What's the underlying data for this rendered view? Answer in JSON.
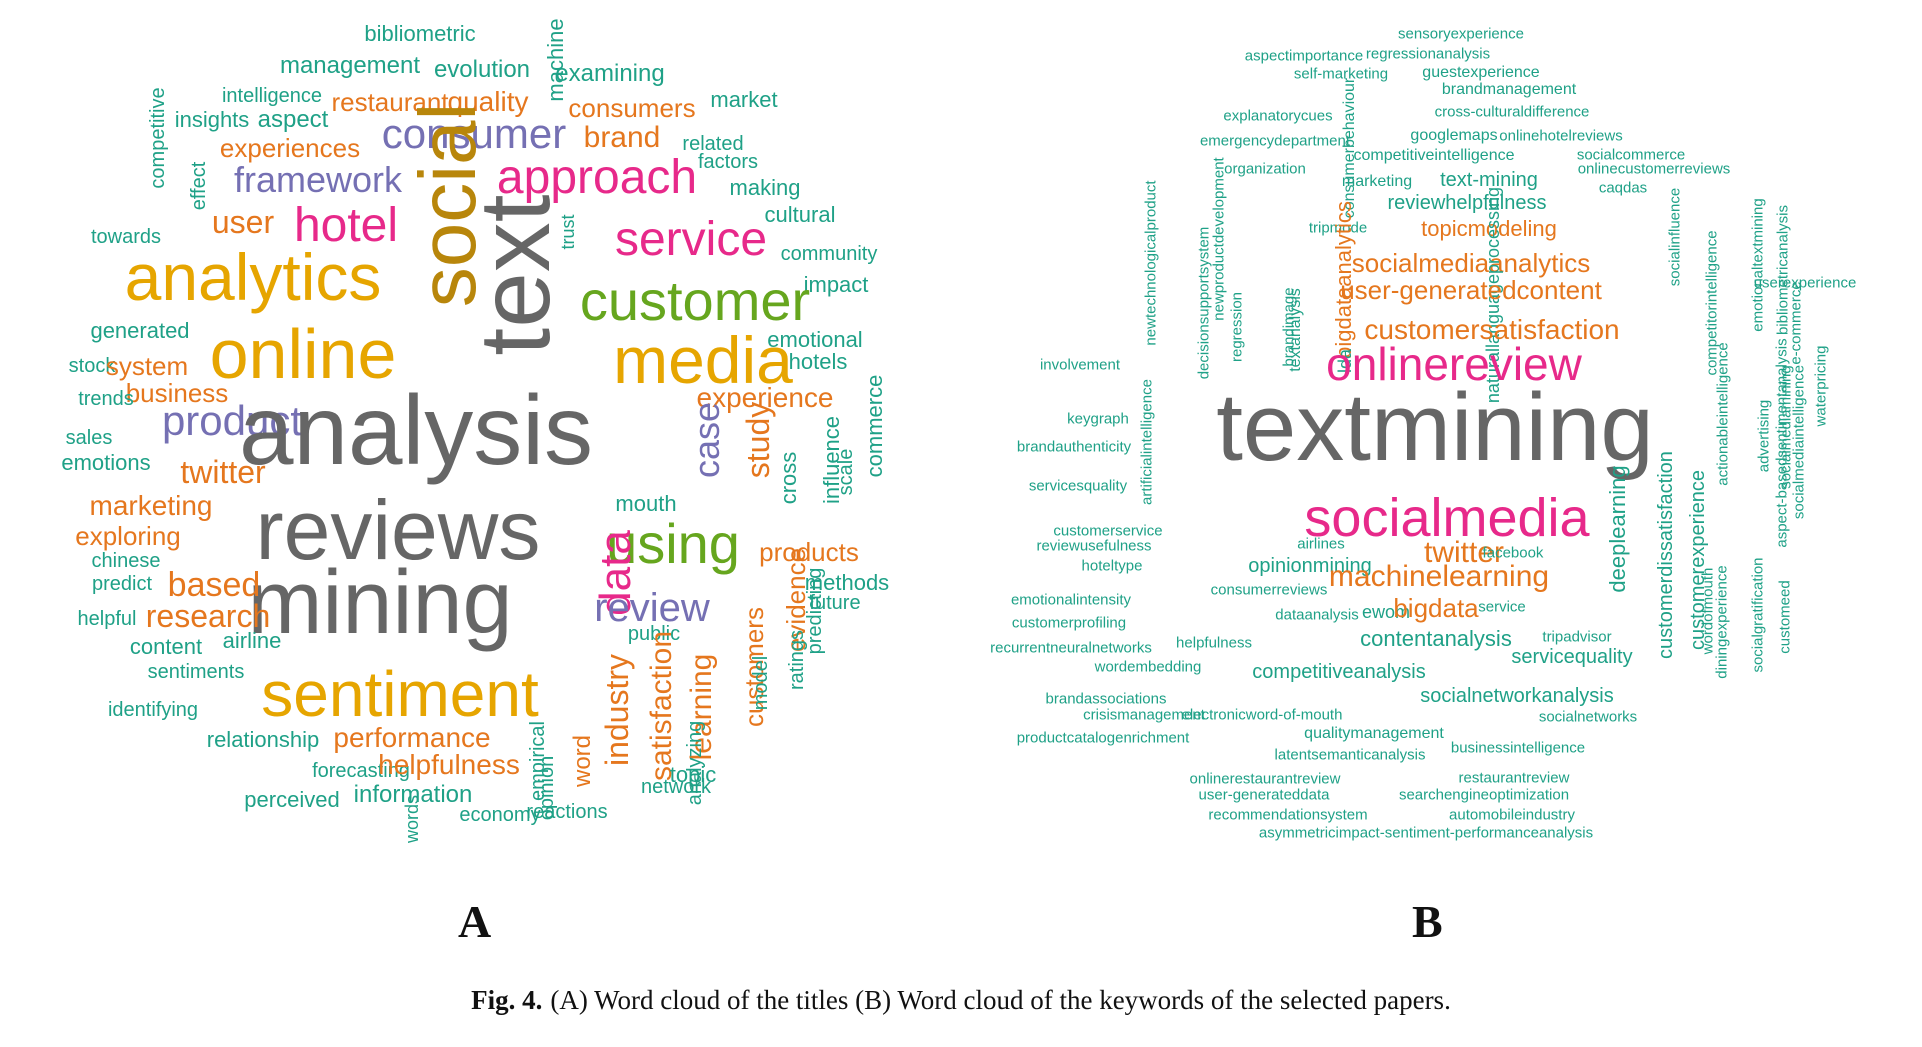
{
  "palette": {
    "teal": "#1fa187",
    "orange": "#e5771e",
    "gold": "#e6a500",
    "brown": "#b8860b",
    "gray": "#666666",
    "pink": "#e7298a",
    "purple": "#7570b3",
    "green": "#66a61e"
  },
  "cloud_a": {
    "label": "A",
    "words": [
      {
        "text": "bibliometric",
        "c": "teal",
        "s": 22
      },
      {
        "text": "management",
        "c": "teal",
        "s": 24
      },
      {
        "text": "evolution",
        "c": "teal",
        "s": 24
      },
      {
        "text": "machine",
        "c": "teal",
        "s": 22,
        "v": true
      },
      {
        "text": "examining",
        "c": "teal",
        "s": 24
      },
      {
        "text": "intelligence",
        "c": "teal",
        "s": 20
      },
      {
        "text": "restaurant",
        "c": "orange",
        "s": 26
      },
      {
        "text": "quality",
        "c": "orange",
        "s": 28
      },
      {
        "text": "consumers",
        "c": "orange",
        "s": 26
      },
      {
        "text": "market",
        "c": "teal",
        "s": 22
      },
      {
        "text": "insights",
        "c": "teal",
        "s": 22
      },
      {
        "text": "aspect",
        "c": "teal",
        "s": 24
      },
      {
        "text": "consumer",
        "c": "purple",
        "s": 42
      },
      {
        "text": "brand",
        "c": "orange",
        "s": 30
      },
      {
        "text": "related",
        "c": "teal",
        "s": 20
      },
      {
        "text": "competitive",
        "c": "teal",
        "s": 20,
        "v": true
      },
      {
        "text": "experiences",
        "c": "orange",
        "s": 26
      },
      {
        "text": "factors",
        "c": "teal",
        "s": 20
      },
      {
        "text": "framework",
        "c": "purple",
        "s": 36
      },
      {
        "text": "approach",
        "c": "pink",
        "s": 48
      },
      {
        "text": "making",
        "c": "teal",
        "s": 22
      },
      {
        "text": "effect",
        "c": "teal",
        "s": 20,
        "v": true
      },
      {
        "text": "social",
        "c": "brown",
        "s": 80,
        "v": true
      },
      {
        "text": "cultural",
        "c": "teal",
        "s": 22
      },
      {
        "text": "user",
        "c": "orange",
        "s": 32
      },
      {
        "text": "hotel",
        "c": "pink",
        "s": 48
      },
      {
        "text": "trust",
        "c": "teal",
        "s": 18,
        "v": true
      },
      {
        "text": "service",
        "c": "pink",
        "s": 48
      },
      {
        "text": "towards",
        "c": "teal",
        "s": 20
      },
      {
        "text": "community",
        "c": "teal",
        "s": 20
      },
      {
        "text": "text",
        "c": "gray",
        "s": 100,
        "v": true
      },
      {
        "text": "analytics",
        "c": "gold",
        "s": 66
      },
      {
        "text": "impact",
        "c": "teal",
        "s": 22
      },
      {
        "text": "customer",
        "c": "green",
        "s": 56
      },
      {
        "text": "generated",
        "c": "teal",
        "s": 22
      },
      {
        "text": "emotional",
        "c": "teal",
        "s": 22
      },
      {
        "text": "online",
        "c": "gold",
        "s": 70
      },
      {
        "text": "media",
        "c": "gold",
        "s": 66
      },
      {
        "text": "stock",
        "c": "teal",
        "s": 20
      },
      {
        "text": "system",
        "c": "orange",
        "s": 26
      },
      {
        "text": "hotels",
        "c": "teal",
        "s": 22
      },
      {
        "text": "business",
        "c": "orange",
        "s": 26
      },
      {
        "text": "trends",
        "c": "teal",
        "s": 20
      },
      {
        "text": "experience",
        "c": "orange",
        "s": 28
      },
      {
        "text": "product",
        "c": "purple",
        "s": 42
      },
      {
        "text": "analysis",
        "c": "gray",
        "s": 98
      },
      {
        "text": "case",
        "c": "purple",
        "s": 36,
        "v": true
      },
      {
        "text": "study",
        "c": "orange",
        "s": 32,
        "v": true
      },
      {
        "text": "commerce",
        "c": "teal",
        "s": 22,
        "v": true
      },
      {
        "text": "sales",
        "c": "teal",
        "s": 20
      },
      {
        "text": "influence",
        "c": "teal",
        "s": 22,
        "v": true
      },
      {
        "text": "scale",
        "c": "teal",
        "s": 20,
        "v": true
      },
      {
        "text": "emotions",
        "c": "teal",
        "s": 22
      },
      {
        "text": "twitter",
        "c": "orange",
        "s": 32
      },
      {
        "text": "cross",
        "c": "teal",
        "s": 22,
        "v": true
      },
      {
        "text": "marketing",
        "c": "orange",
        "s": 28
      },
      {
        "text": "mouth",
        "c": "teal",
        "s": 22
      },
      {
        "text": "reviews",
        "c": "gray",
        "s": 84
      },
      {
        "text": "exploring",
        "c": "orange",
        "s": 26
      },
      {
        "text": "using",
        "c": "green",
        "s": 56
      },
      {
        "text": "products",
        "c": "orange",
        "s": 26
      },
      {
        "text": "chinese",
        "c": "teal",
        "s": 20
      },
      {
        "text": "methods",
        "c": "teal",
        "s": 22
      },
      {
        "text": "predict",
        "c": "teal",
        "s": 20
      },
      {
        "text": "mining",
        "c": "gray",
        "s": 90
      },
      {
        "text": "based",
        "c": "orange",
        "s": 34
      },
      {
        "text": "data",
        "c": "pink",
        "s": 44,
        "v": true
      },
      {
        "text": "future",
        "c": "teal",
        "s": 20
      },
      {
        "text": "review",
        "c": "purple",
        "s": 40
      },
      {
        "text": "helpful",
        "c": "teal",
        "s": 20
      },
      {
        "text": "research",
        "c": "orange",
        "s": 32
      },
      {
        "text": "evidence",
        "c": "orange",
        "s": 26,
        "v": true
      },
      {
        "text": "predicting",
        "c": "teal",
        "s": 20,
        "v": true
      },
      {
        "text": "content",
        "c": "teal",
        "s": 22
      },
      {
        "text": "airline",
        "c": "teal",
        "s": 22
      },
      {
        "text": "public",
        "c": "teal",
        "s": 20
      },
      {
        "text": "sentiments",
        "c": "teal",
        "s": 20
      },
      {
        "text": "ratings",
        "c": "teal",
        "s": 20,
        "v": true
      },
      {
        "text": "customers",
        "c": "orange",
        "s": 26,
        "v": true
      },
      {
        "text": "sentiment",
        "c": "gold",
        "s": 64
      },
      {
        "text": "industry",
        "c": "orange",
        "s": 32,
        "v": true
      },
      {
        "text": "model",
        "c": "teal",
        "s": 20,
        "v": true
      },
      {
        "text": "learning",
        "c": "orange",
        "s": 30,
        "v": true
      },
      {
        "text": "satisfaction",
        "c": "orange",
        "s": 30,
        "v": true
      },
      {
        "text": "identifying",
        "c": "teal",
        "s": 20
      },
      {
        "text": "analyzing",
        "c": "teal",
        "s": 20,
        "v": true
      },
      {
        "text": "relationship",
        "c": "teal",
        "s": 22
      },
      {
        "text": "performance",
        "c": "orange",
        "s": 28
      },
      {
        "text": "forecasting",
        "c": "teal",
        "s": 20
      },
      {
        "text": "helpfulness",
        "c": "orange",
        "s": 28
      },
      {
        "text": "topic",
        "c": "teal",
        "s": 22
      },
      {
        "text": "empirical",
        "c": "teal",
        "s": 20,
        "v": true
      },
      {
        "text": "word",
        "c": "orange",
        "s": 24,
        "v": true
      },
      {
        "text": "perceived",
        "c": "teal",
        "s": 22
      },
      {
        "text": "information",
        "c": "teal",
        "s": 24
      },
      {
        "text": "opinion",
        "c": "teal",
        "s": 20,
        "v": true
      },
      {
        "text": "network",
        "c": "teal",
        "s": 20
      },
      {
        "text": "reactions",
        "c": "teal",
        "s": 20
      },
      {
        "text": "words",
        "c": "teal",
        "s": 18,
        "v": true
      },
      {
        "text": "economy",
        "c": "teal",
        "s": 20
      }
    ]
  },
  "cloud_b": {
    "label": "B",
    "words": [
      {
        "text": "sensoryexperience",
        "c": "teal",
        "s": 15
      },
      {
        "text": "aspectimportance",
        "c": "teal",
        "s": 15
      },
      {
        "text": "regressionanalysis",
        "c": "teal",
        "s": 15
      },
      {
        "text": "self-marketing",
        "c": "teal",
        "s": 15
      },
      {
        "text": "guestexperience",
        "c": "teal",
        "s": 16
      },
      {
        "text": "brandmanagement",
        "c": "teal",
        "s": 16
      },
      {
        "text": "cross-culturaldifference",
        "c": "teal",
        "s": 15
      },
      {
        "text": "explanatorycues",
        "c": "teal",
        "s": 15
      },
      {
        "text": "consumerbehaviour",
        "c": "teal",
        "s": 16,
        "v": true
      },
      {
        "text": "googlemaps",
        "c": "teal",
        "s": 16
      },
      {
        "text": "onlinehotelreviews",
        "c": "teal",
        "s": 15
      },
      {
        "text": "emergencydepartment",
        "c": "teal",
        "s": 15
      },
      {
        "text": "socialcommerce",
        "c": "teal",
        "s": 15
      },
      {
        "text": "competitiveintelligence",
        "c": "teal",
        "s": 16
      },
      {
        "text": "organization",
        "c": "teal",
        "s": 15
      },
      {
        "text": "onlinecustomerreviews",
        "c": "teal",
        "s": 15
      },
      {
        "text": "newtechnologicalproduct",
        "c": "teal",
        "s": 15,
        "v": true
      },
      {
        "text": "marketing",
        "c": "teal",
        "s": 16
      },
      {
        "text": "text-mining",
        "c": "teal",
        "s": 20
      },
      {
        "text": "caqdas",
        "c": "teal",
        "s": 15
      },
      {
        "text": "newproductdevelopment",
        "c": "teal",
        "s": 15,
        "v": true
      },
      {
        "text": "reviewhelpfulness",
        "c": "teal",
        "s": 20
      },
      {
        "text": "tripmode",
        "c": "teal",
        "s": 15
      },
      {
        "text": "topicmodeling",
        "c": "orange",
        "s": 22
      },
      {
        "text": "decisionsupportsystem",
        "c": "teal",
        "s": 15,
        "v": true
      },
      {
        "text": "bigdataanalytics",
        "c": "orange",
        "s": 22,
        "v": true
      },
      {
        "text": "socialmediaanalytics",
        "c": "orange",
        "s": 26
      },
      {
        "text": "socialinfluence",
        "c": "teal",
        "s": 15,
        "v": true
      },
      {
        "text": "competitorintelligence",
        "c": "teal",
        "s": 15,
        "v": true
      },
      {
        "text": "emotionaltextmining",
        "c": "teal",
        "s": 15,
        "v": true
      },
      {
        "text": "bibliometricanalysis",
        "c": "teal",
        "s": 15,
        "v": true
      },
      {
        "text": "userexperience",
        "c": "teal",
        "s": 15
      },
      {
        "text": "naturallanguageprocessing",
        "c": "teal",
        "s": 18,
        "v": true
      },
      {
        "text": "regression",
        "c": "teal",
        "s": 15,
        "v": true
      },
      {
        "text": "brandimage",
        "c": "teal",
        "s": 15,
        "v": true
      },
      {
        "text": "textanalysis",
        "c": "teal",
        "s": 16,
        "v": true
      },
      {
        "text": "user-generatedcontent",
        "c": "orange",
        "s": 26
      },
      {
        "text": "e-commerce",
        "c": "teal",
        "s": 15,
        "v": true
      },
      {
        "text": "customersatisfaction",
        "c": "orange",
        "s": 28
      },
      {
        "text": "lda",
        "c": "teal",
        "s": 18,
        "v": true
      },
      {
        "text": "involvement",
        "c": "teal",
        "s": 15
      },
      {
        "text": "onlinereview",
        "c": "pink",
        "s": 46
      },
      {
        "text": "artificialintelligence",
        "c": "teal",
        "s": 15,
        "v": true
      },
      {
        "text": "keygraph",
        "c": "teal",
        "s": 15
      },
      {
        "text": "textmining",
        "c": "gray",
        "s": 96
      },
      {
        "text": "actionableintelligence",
        "c": "teal",
        "s": 15,
        "v": true
      },
      {
        "text": "advertising",
        "c": "teal",
        "s": 15,
        "v": true
      },
      {
        "text": "socialmediamining",
        "c": "teal",
        "s": 15,
        "v": true
      },
      {
        "text": "aspect-basedsentimentanalysis",
        "c": "teal",
        "s": 15,
        "v": true
      },
      {
        "text": "socialmediaintelligence",
        "c": "teal",
        "s": 15,
        "v": true
      },
      {
        "text": "waterpricing",
        "c": "teal",
        "s": 15,
        "v": true
      },
      {
        "text": "brandauthenticity",
        "c": "teal",
        "s": 15
      },
      {
        "text": "servicesquality",
        "c": "teal",
        "s": 15
      },
      {
        "text": "socialmedia",
        "c": "pink",
        "s": 54
      },
      {
        "text": "deeplearning",
        "c": "teal",
        "s": 22,
        "v": true
      },
      {
        "text": "customerdissatisfaction",
        "c": "teal",
        "s": 20,
        "v": true
      },
      {
        "text": "customerexperience",
        "c": "teal",
        "s": 20,
        "v": true
      },
      {
        "text": "wordofmouth",
        "c": "teal",
        "s": 15,
        "v": true
      },
      {
        "text": "diningexperience",
        "c": "teal",
        "s": 15,
        "v": true
      },
      {
        "text": "socialgratification",
        "c": "teal",
        "s": 15,
        "v": true
      },
      {
        "text": "customerservice",
        "c": "teal",
        "s": 15
      },
      {
        "text": "reviewusefulness",
        "c": "teal",
        "s": 15
      },
      {
        "text": "airlines",
        "c": "teal",
        "s": 15
      },
      {
        "text": "twitter",
        "c": "orange",
        "s": 30
      },
      {
        "text": "facebook",
        "c": "teal",
        "s": 15
      },
      {
        "text": "customeed",
        "c": "teal",
        "s": 15,
        "v": true
      },
      {
        "text": "hoteltype",
        "c": "teal",
        "s": 15
      },
      {
        "text": "opinionmining",
        "c": "teal",
        "s": 20
      },
      {
        "text": "machinelearning",
        "c": "orange",
        "s": 30
      },
      {
        "text": "emotionalintensity",
        "c": "teal",
        "s": 15
      },
      {
        "text": "consumerreviews",
        "c": "teal",
        "s": 15
      },
      {
        "text": "customerprofiling",
        "c": "teal",
        "s": 15
      },
      {
        "text": "dataanalysis",
        "c": "teal",
        "s": 15
      },
      {
        "text": "ewom",
        "c": "teal",
        "s": 18
      },
      {
        "text": "bigdata",
        "c": "orange",
        "s": 26
      },
      {
        "text": "service",
        "c": "teal",
        "s": 15
      },
      {
        "text": "recurrentneuralnetworks",
        "c": "teal",
        "s": 15
      },
      {
        "text": "helpfulness",
        "c": "teal",
        "s": 15
      },
      {
        "text": "contentanalysis",
        "c": "teal",
        "s": 22
      },
      {
        "text": "tripadvisor",
        "c": "teal",
        "s": 15
      },
      {
        "text": "servicequality",
        "c": "teal",
        "s": 20
      },
      {
        "text": "wordembedding",
        "c": "teal",
        "s": 15
      },
      {
        "text": "competitiveanalysis",
        "c": "teal",
        "s": 20
      },
      {
        "text": "brandassociations",
        "c": "teal",
        "s": 15
      },
      {
        "text": "socialnetworkanalysis",
        "c": "teal",
        "s": 20
      },
      {
        "text": "crisismanagement",
        "c": "teal",
        "s": 15
      },
      {
        "text": "electronicword-of-mouth",
        "c": "teal",
        "s": 15
      },
      {
        "text": "socialnetworks",
        "c": "teal",
        "s": 15
      },
      {
        "text": "productcatalogenrichment",
        "c": "teal",
        "s": 15
      },
      {
        "text": "qualitymanagement",
        "c": "teal",
        "s": 16
      },
      {
        "text": "businessintelligence",
        "c": "teal",
        "s": 15
      },
      {
        "text": "latentsemanticanalysis",
        "c": "teal",
        "s": 15
      },
      {
        "text": "onlinerestaurantreview",
        "c": "teal",
        "s": 15
      },
      {
        "text": "restaurantreview",
        "c": "teal",
        "s": 15
      },
      {
        "text": "user-generateddata",
        "c": "teal",
        "s": 15
      },
      {
        "text": "searchengineoptimization",
        "c": "teal",
        "s": 15
      },
      {
        "text": "recommendationsystem",
        "c": "teal",
        "s": 15
      },
      {
        "text": "automobileindustry",
        "c": "teal",
        "s": 15
      },
      {
        "text": "asymmetricimpact-sentiment-performanceanalysis",
        "c": "teal",
        "s": 15
      }
    ]
  },
  "caption": {
    "prefix": "Fig. 4.",
    "text": "(A) Word cloud of the titles (B) Word cloud of the keywords of the selected papers."
  }
}
